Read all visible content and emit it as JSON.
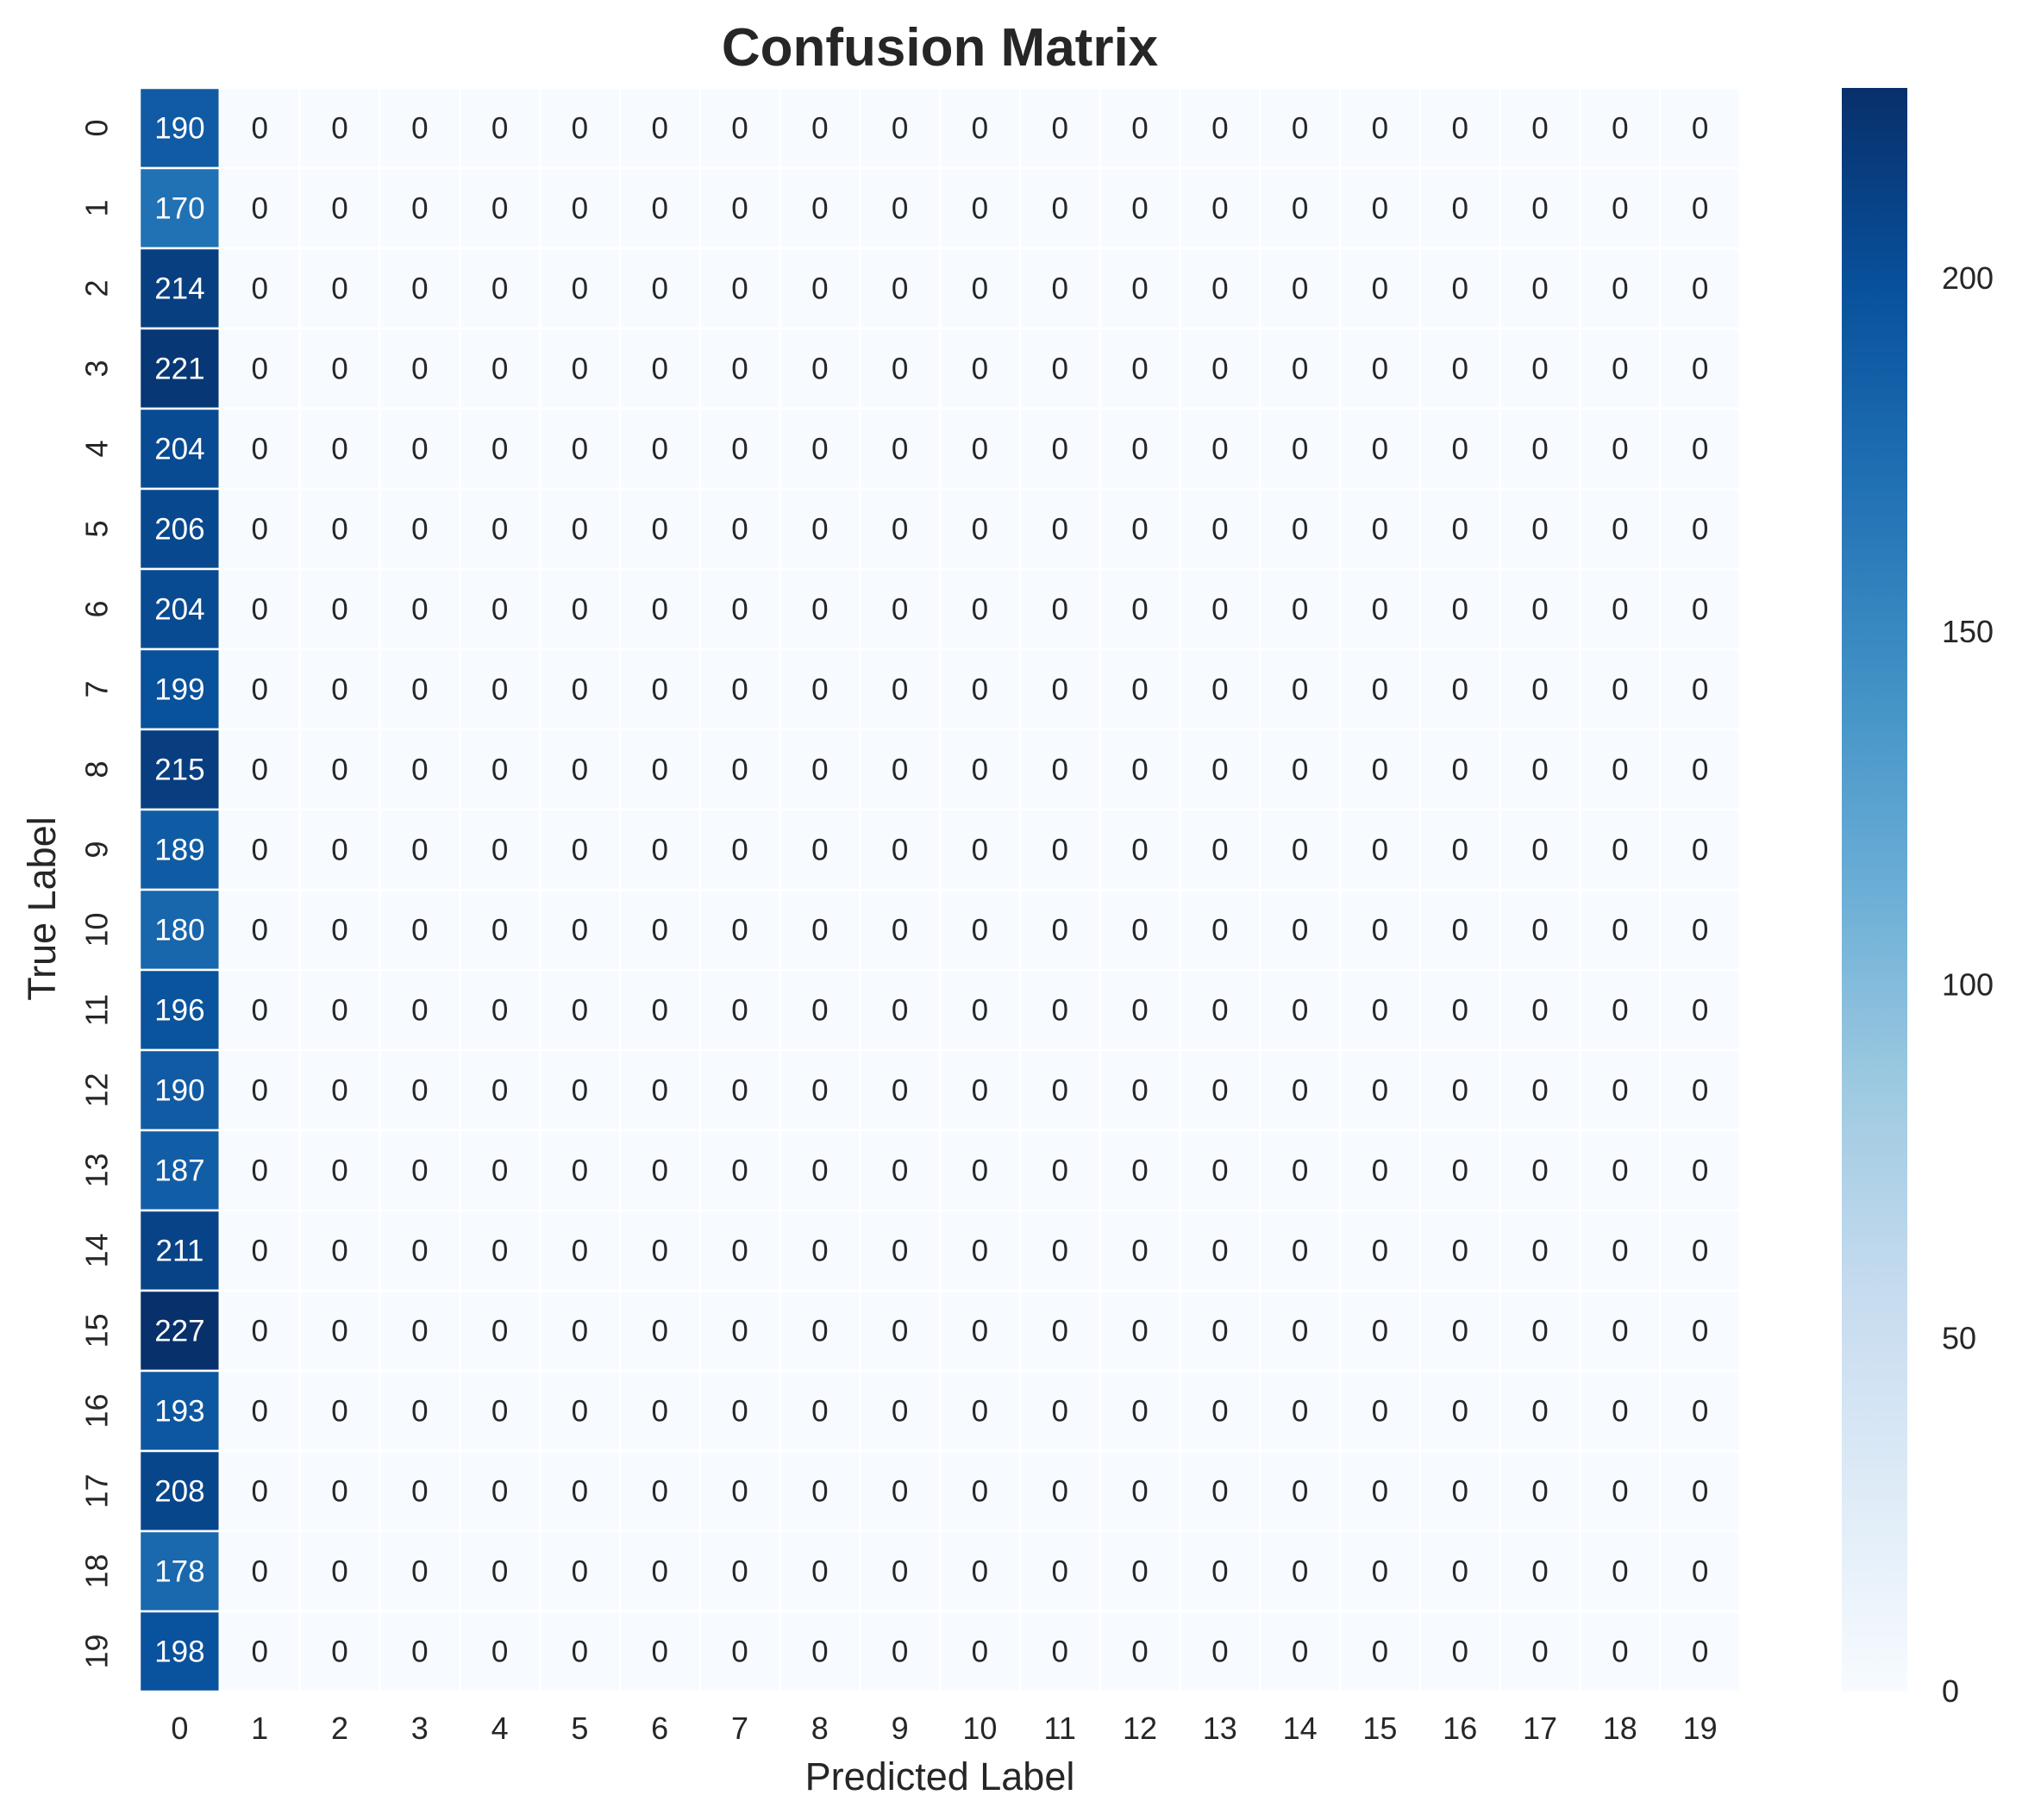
{
  "chart_data": {
    "type": "heatmap",
    "title": "Confusion Matrix",
    "xlabel": "Predicted Label",
    "ylabel": "True Label",
    "x_categories": [
      "0",
      "1",
      "2",
      "3",
      "4",
      "5",
      "6",
      "7",
      "8",
      "9",
      "10",
      "11",
      "12",
      "13",
      "14",
      "15",
      "16",
      "17",
      "18",
      "19"
    ],
    "y_categories": [
      "0",
      "1",
      "2",
      "3",
      "4",
      "5",
      "6",
      "7",
      "8",
      "9",
      "10",
      "11",
      "12",
      "13",
      "14",
      "15",
      "16",
      "17",
      "18",
      "19"
    ],
    "values": [
      [
        190,
        0,
        0,
        0,
        0,
        0,
        0,
        0,
        0,
        0,
        0,
        0,
        0,
        0,
        0,
        0,
        0,
        0,
        0,
        0
      ],
      [
        170,
        0,
        0,
        0,
        0,
        0,
        0,
        0,
        0,
        0,
        0,
        0,
        0,
        0,
        0,
        0,
        0,
        0,
        0,
        0
      ],
      [
        214,
        0,
        0,
        0,
        0,
        0,
        0,
        0,
        0,
        0,
        0,
        0,
        0,
        0,
        0,
        0,
        0,
        0,
        0,
        0
      ],
      [
        221,
        0,
        0,
        0,
        0,
        0,
        0,
        0,
        0,
        0,
        0,
        0,
        0,
        0,
        0,
        0,
        0,
        0,
        0,
        0
      ],
      [
        204,
        0,
        0,
        0,
        0,
        0,
        0,
        0,
        0,
        0,
        0,
        0,
        0,
        0,
        0,
        0,
        0,
        0,
        0,
        0
      ],
      [
        206,
        0,
        0,
        0,
        0,
        0,
        0,
        0,
        0,
        0,
        0,
        0,
        0,
        0,
        0,
        0,
        0,
        0,
        0,
        0
      ],
      [
        204,
        0,
        0,
        0,
        0,
        0,
        0,
        0,
        0,
        0,
        0,
        0,
        0,
        0,
        0,
        0,
        0,
        0,
        0,
        0
      ],
      [
        199,
        0,
        0,
        0,
        0,
        0,
        0,
        0,
        0,
        0,
        0,
        0,
        0,
        0,
        0,
        0,
        0,
        0,
        0,
        0
      ],
      [
        215,
        0,
        0,
        0,
        0,
        0,
        0,
        0,
        0,
        0,
        0,
        0,
        0,
        0,
        0,
        0,
        0,
        0,
        0,
        0
      ],
      [
        189,
        0,
        0,
        0,
        0,
        0,
        0,
        0,
        0,
        0,
        0,
        0,
        0,
        0,
        0,
        0,
        0,
        0,
        0,
        0
      ],
      [
        180,
        0,
        0,
        0,
        0,
        0,
        0,
        0,
        0,
        0,
        0,
        0,
        0,
        0,
        0,
        0,
        0,
        0,
        0,
        0
      ],
      [
        196,
        0,
        0,
        0,
        0,
        0,
        0,
        0,
        0,
        0,
        0,
        0,
        0,
        0,
        0,
        0,
        0,
        0,
        0,
        0
      ],
      [
        190,
        0,
        0,
        0,
        0,
        0,
        0,
        0,
        0,
        0,
        0,
        0,
        0,
        0,
        0,
        0,
        0,
        0,
        0,
        0
      ],
      [
        187,
        0,
        0,
        0,
        0,
        0,
        0,
        0,
        0,
        0,
        0,
        0,
        0,
        0,
        0,
        0,
        0,
        0,
        0,
        0
      ],
      [
        211,
        0,
        0,
        0,
        0,
        0,
        0,
        0,
        0,
        0,
        0,
        0,
        0,
        0,
        0,
        0,
        0,
        0,
        0,
        0
      ],
      [
        227,
        0,
        0,
        0,
        0,
        0,
        0,
        0,
        0,
        0,
        0,
        0,
        0,
        0,
        0,
        0,
        0,
        0,
        0,
        0
      ],
      [
        193,
        0,
        0,
        0,
        0,
        0,
        0,
        0,
        0,
        0,
        0,
        0,
        0,
        0,
        0,
        0,
        0,
        0,
        0,
        0
      ],
      [
        208,
        0,
        0,
        0,
        0,
        0,
        0,
        0,
        0,
        0,
        0,
        0,
        0,
        0,
        0,
        0,
        0,
        0,
        0,
        0
      ],
      [
        178,
        0,
        0,
        0,
        0,
        0,
        0,
        0,
        0,
        0,
        0,
        0,
        0,
        0,
        0,
        0,
        0,
        0,
        0,
        0
      ],
      [
        198,
        0,
        0,
        0,
        0,
        0,
        0,
        0,
        0,
        0,
        0,
        0,
        0,
        0,
        0,
        0,
        0,
        0,
        0,
        0
      ]
    ],
    "colormap": "Blues",
    "colorbar": {
      "range": [
        0,
        227
      ],
      "ticks": [
        "0",
        "50",
        "100",
        "150",
        "200"
      ]
    },
    "colors": {
      "min": "#f7fbff",
      "max": "#08306b",
      "cell_border": "#ffffff"
    },
    "grid": false,
    "legend": "colorbar-right"
  }
}
